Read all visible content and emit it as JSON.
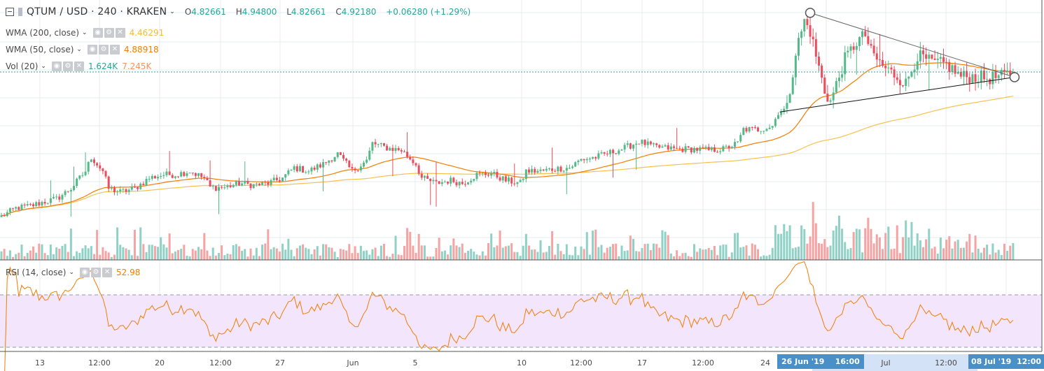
{
  "header": {
    "symbol": "QTUM / USD · 240 · KRAKEN",
    "open_label": "O",
    "open": "4.82661",
    "high_label": "H",
    "high": "4.94800",
    "low_label": "L",
    "low": "4.82661",
    "close_label": "C",
    "close": "4.92180",
    "change": "+0.06280 (+1.29%)"
  },
  "indicators": [
    {
      "name": "WMA (200, close)",
      "values": [
        "4.46291"
      ],
      "colors": [
        "#f6b93b"
      ]
    },
    {
      "name": "WMA (50, close)",
      "values": [
        "4.88918"
      ],
      "colors": [
        "#f57c00"
      ]
    },
    {
      "name": "Vol (20)",
      "values": [
        "1.624K",
        "7.245K"
      ],
      "colors": [
        "#26a69a",
        "#f7925b"
      ]
    },
    {
      "name": "RSI (14, close)",
      "values": [
        "52.98"
      ],
      "colors": [
        "#f57c00"
      ]
    }
  ],
  "icons": {
    "eye": "eye-icon",
    "gear": "gear-icon",
    "close": "close-icon"
  },
  "time_axis": {
    "labels": [
      "13",
      "12:00",
      "20",
      "12:00",
      "27",
      "Jun",
      "5",
      "10",
      "12:00",
      "17",
      "12:00",
      "24",
      "Jul",
      "12:00"
    ],
    "highlight_start": "26 Jun '19",
    "highlight_start_time": "16:00",
    "highlight_end": "08 Jul '19",
    "highlight_end_time": "12:00"
  },
  "colors": {
    "up": "#53b987",
    "down": "#eb4d5c",
    "vol_up": "#90d1c6",
    "vol_down": "#f5a3a3",
    "wma50": "#f57c00",
    "wma200": "#f6c14b",
    "rsi": "#f57c00",
    "rsi_band": "#f3e6fc"
  },
  "chart_data": {
    "type": "candlestick",
    "title": "QTUM / USD · 240 · KRAKEN",
    "x_unit": "4h bar index",
    "last_price": 4.9218,
    "close_keypoints": [
      [
        0,
        2.43
      ],
      [
        5,
        2.57
      ],
      [
        10,
        2.61
      ],
      [
        14,
        2.67
      ],
      [
        19,
        2.73
      ],
      [
        24,
        2.91
      ],
      [
        29,
        3.21
      ],
      [
        31,
        3.45
      ],
      [
        35,
        3.21
      ],
      [
        37,
        2.91
      ],
      [
        41,
        2.85
      ],
      [
        46,
        2.91
      ],
      [
        51,
        3.09
      ],
      [
        56,
        3.15
      ],
      [
        60,
        3.15
      ],
      [
        65,
        3.21
      ],
      [
        70,
        3.09
      ],
      [
        72,
        2.93
      ],
      [
        77,
        2.93
      ],
      [
        82,
        3.0
      ],
      [
        87,
        2.97
      ],
      [
        92,
        3.0
      ],
      [
        97,
        3.09
      ],
      [
        101,
        3.27
      ],
      [
        106,
        3.21
      ],
      [
        111,
        3.33
      ],
      [
        116,
        3.51
      ],
      [
        121,
        3.21
      ],
      [
        126,
        3.39
      ],
      [
        128,
        3.69
      ],
      [
        133,
        3.61
      ],
      [
        138,
        3.57
      ],
      [
        143,
        3.33
      ],
      [
        145,
        3.09
      ],
      [
        150,
        3.0
      ],
      [
        155,
        3.05
      ],
      [
        159,
        3.0
      ],
      [
        164,
        3.15
      ],
      [
        169,
        3.17
      ],
      [
        174,
        3.05
      ],
      [
        179,
        3.0
      ],
      [
        181,
        3.21
      ],
      [
        186,
        3.21
      ],
      [
        191,
        3.25
      ],
      [
        196,
        3.27
      ],
      [
        200,
        3.41
      ],
      [
        205,
        3.45
      ],
      [
        210,
        3.53
      ],
      [
        215,
        3.61
      ],
      [
        220,
        3.72
      ],
      [
        225,
        3.63
      ],
      [
        229,
        3.61
      ],
      [
        234,
        3.59
      ],
      [
        239,
        3.59
      ],
      [
        244,
        3.57
      ],
      [
        249,
        3.59
      ],
      [
        254,
        3.69
      ],
      [
        256,
        3.93
      ],
      [
        261,
        3.93
      ],
      [
        266,
        3.99
      ],
      [
        268,
        4.23
      ],
      [
        271,
        4.29
      ],
      [
        274,
        5.26
      ],
      [
        277,
        5.8
      ],
      [
        279,
        5.62
      ],
      [
        281,
        5.2
      ],
      [
        284,
        4.59
      ],
      [
        286,
        4.41
      ],
      [
        289,
        4.84
      ],
      [
        291,
        5.14
      ],
      [
        295,
        5.44
      ],
      [
        298,
        5.56
      ],
      [
        300,
        5.26
      ],
      [
        304,
        5.02
      ],
      [
        309,
        4.84
      ],
      [
        312,
        4.72
      ],
      [
        316,
        5.2
      ],
      [
        321,
        5.08
      ],
      [
        326,
        5.05
      ],
      [
        331,
        4.84
      ],
      [
        336,
        4.84
      ],
      [
        340,
        4.81
      ],
      [
        345,
        4.84
      ],
      [
        349,
        4.92
      ]
    ],
    "trendlines": [
      {
        "name": "upper",
        "from": [
          279,
          5.94
        ],
        "to": [
          349.5,
          4.83
        ]
      },
      {
        "name": "lower",
        "from": [
          268.5,
          4.23
        ],
        "to": [
          349.5,
          4.83
        ]
      }
    ],
    "rsi_levels": [
      70,
      30
    ],
    "series": [
      "Price",
      "WMA 50",
      "WMA 200",
      "Volume",
      "RSI 14"
    ]
  }
}
